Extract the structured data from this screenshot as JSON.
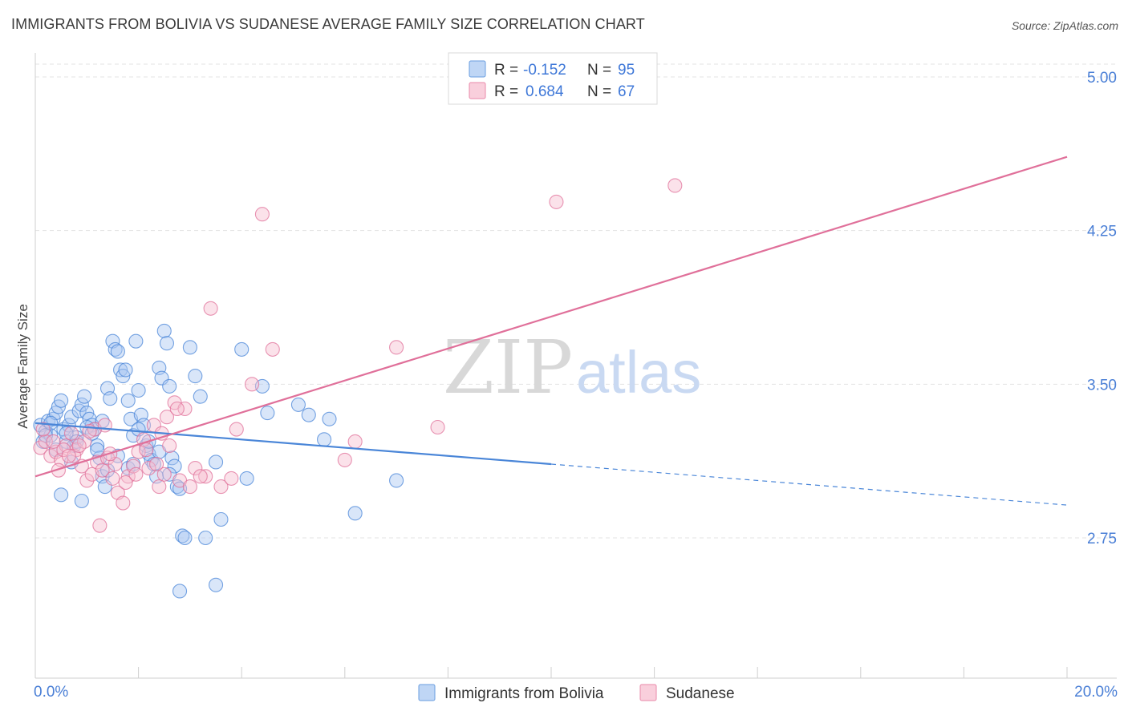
{
  "title": "IMMIGRANTS FROM BOLIVIA VS SUDANESE AVERAGE FAMILY SIZE CORRELATION CHART",
  "source": "Source: ZipAtlas.com",
  "watermark": {
    "zip": "ZIP",
    "atlas": "atlas"
  },
  "legend": {
    "r_label": "R =",
    "n_label": "N =",
    "rows": [
      {
        "r": "-0.152",
        "n": "95",
        "fill": "#aac8f2",
        "stroke": "#6a9ee0"
      },
      {
        "r": "0.684",
        "n": "67",
        "fill": "#f7bfd0",
        "stroke": "#e98aaa"
      }
    ]
  },
  "chart_data": {
    "type": "scatter",
    "title": "IMMIGRANTS FROM BOLIVIA VS SUDANESE AVERAGE FAMILY SIZE CORRELATION CHART",
    "xlabel": "",
    "ylabel": "Average Family Size",
    "xlim": [
      0,
      20
    ],
    "ylim": [
      2.2,
      5.1
    ],
    "x_tick_labels": [
      "0.0%",
      "20.0%"
    ],
    "y_ticks": [
      2.75,
      3.5,
      4.25,
      5.0
    ],
    "y_tick_labels": [
      "2.75",
      "3.50",
      "4.25",
      "5.00"
    ],
    "grid": true,
    "legend_position": "top-center",
    "series": [
      {
        "name": "Immigrants from Bolivia",
        "color": "#4a86d8",
        "fill": "#aac8f2",
        "trend": {
          "x0": 0,
          "y0": 3.31,
          "x1": 10,
          "y1": 3.11,
          "dashed_to_x": 20,
          "dashed_to_y": 2.91
        },
        "points": [
          [
            0.1,
            3.3
          ],
          [
            0.15,
            3.22
          ],
          [
            0.2,
            3.27
          ],
          [
            0.25,
            3.32
          ],
          [
            0.3,
            3.25
          ],
          [
            0.35,
            3.33
          ],
          [
            0.4,
            3.36
          ],
          [
            0.45,
            3.39
          ],
          [
            0.5,
            3.42
          ],
          [
            0.55,
            3.28
          ],
          [
            0.6,
            3.22
          ],
          [
            0.65,
            3.3
          ],
          [
            0.7,
            3.34
          ],
          [
            0.75,
            3.2
          ],
          [
            0.8,
            3.24
          ],
          [
            0.85,
            3.37
          ],
          [
            0.9,
            3.4
          ],
          [
            0.95,
            3.44
          ],
          [
            1.0,
            3.36
          ],
          [
            1.05,
            3.33
          ],
          [
            1.1,
            3.3
          ],
          [
            1.15,
            3.28
          ],
          [
            1.2,
            3.2
          ],
          [
            1.25,
            3.14
          ],
          [
            1.3,
            3.05
          ],
          [
            1.35,
            3.0
          ],
          [
            1.4,
            3.48
          ],
          [
            1.45,
            3.43
          ],
          [
            1.5,
            3.71
          ],
          [
            1.55,
            3.67
          ],
          [
            1.6,
            3.66
          ],
          [
            1.65,
            3.57
          ],
          [
            1.7,
            3.54
          ],
          [
            1.75,
            3.57
          ],
          [
            1.8,
            3.42
          ],
          [
            1.85,
            3.33
          ],
          [
            1.9,
            3.25
          ],
          [
            1.95,
            3.71
          ],
          [
            2.0,
            3.47
          ],
          [
            2.05,
            3.35
          ],
          [
            2.1,
            3.3
          ],
          [
            2.15,
            3.2
          ],
          [
            2.2,
            3.16
          ],
          [
            2.25,
            3.13
          ],
          [
            2.3,
            3.11
          ],
          [
            2.35,
            3.05
          ],
          [
            2.4,
            3.58
          ],
          [
            2.45,
            3.53
          ],
          [
            2.5,
            3.76
          ],
          [
            2.55,
            3.7
          ],
          [
            2.6,
            3.49
          ],
          [
            2.65,
            3.14
          ],
          [
            2.7,
            3.1
          ],
          [
            2.75,
            3.0
          ],
          [
            2.8,
            2.99
          ],
          [
            2.85,
            2.76
          ],
          [
            2.9,
            2.75
          ],
          [
            3.0,
            3.68
          ],
          [
            3.1,
            3.54
          ],
          [
            3.2,
            3.44
          ],
          [
            3.5,
            3.12
          ],
          [
            3.6,
            2.84
          ],
          [
            4.0,
            3.67
          ],
          [
            4.1,
            3.04
          ],
          [
            4.4,
            3.49
          ],
          [
            4.5,
            3.36
          ],
          [
            5.1,
            3.4
          ],
          [
            5.3,
            3.35
          ],
          [
            5.6,
            3.23
          ],
          [
            5.7,
            3.33
          ],
          [
            6.2,
            2.87
          ],
          [
            7.0,
            3.03
          ],
          [
            0.2,
            3.25
          ],
          [
            0.4,
            3.18
          ],
          [
            0.6,
            3.26
          ],
          [
            0.7,
            3.12
          ],
          [
            0.8,
            3.22
          ],
          [
            1.0,
            3.29
          ],
          [
            1.2,
            3.18
          ],
          [
            1.4,
            3.08
          ],
          [
            1.6,
            3.15
          ],
          [
            1.8,
            3.09
          ],
          [
            2.0,
            3.28
          ],
          [
            2.2,
            3.22
          ],
          [
            2.4,
            3.17
          ],
          [
            0.3,
            3.31
          ],
          [
            0.5,
            2.96
          ],
          [
            0.9,
            2.93
          ],
          [
            1.1,
            3.26
          ],
          [
            1.3,
            3.32
          ],
          [
            2.8,
            2.49
          ],
          [
            3.5,
            2.52
          ],
          [
            3.3,
            2.75
          ],
          [
            2.6,
            3.06
          ],
          [
            1.9,
            3.11
          ]
        ]
      },
      {
        "name": "Sudanese",
        "color": "#e0709a",
        "fill": "#f7bfd0",
        "trend": {
          "x0": 0,
          "y0": 3.05,
          "x1": 20,
          "y1": 4.61
        },
        "points": [
          [
            0.1,
            3.19
          ],
          [
            0.2,
            3.22
          ],
          [
            0.3,
            3.15
          ],
          [
            0.4,
            3.17
          ],
          [
            0.5,
            3.13
          ],
          [
            0.6,
            3.2
          ],
          [
            0.7,
            3.26
          ],
          [
            0.8,
            3.18
          ],
          [
            0.9,
            3.1
          ],
          [
            1.0,
            3.03
          ],
          [
            1.1,
            3.06
          ],
          [
            1.2,
            3.12
          ],
          [
            1.3,
            3.08
          ],
          [
            1.4,
            3.14
          ],
          [
            1.5,
            3.04
          ],
          [
            1.6,
            2.97
          ],
          [
            1.7,
            2.92
          ],
          [
            1.8,
            3.05
          ],
          [
            1.9,
            3.1
          ],
          [
            2.0,
            3.17
          ],
          [
            2.1,
            3.23
          ],
          [
            2.2,
            3.09
          ],
          [
            2.3,
            3.3
          ],
          [
            2.4,
            3.0
          ],
          [
            2.5,
            3.06
          ],
          [
            2.6,
            3.2
          ],
          [
            2.7,
            3.41
          ],
          [
            2.8,
            3.03
          ],
          [
            2.9,
            3.38
          ],
          [
            3.0,
            3.0
          ],
          [
            3.1,
            3.09
          ],
          [
            3.3,
            3.05
          ],
          [
            3.6,
            3.0
          ],
          [
            3.8,
            3.04
          ],
          [
            3.9,
            3.28
          ],
          [
            4.2,
            3.5
          ],
          [
            4.4,
            4.33
          ],
          [
            4.6,
            3.67
          ],
          [
            6.0,
            3.13
          ],
          [
            6.2,
            3.22
          ],
          [
            7.0,
            3.68
          ],
          [
            7.8,
            3.29
          ],
          [
            10.1,
            4.39
          ],
          [
            12.4,
            4.47
          ],
          [
            3.4,
            3.87
          ],
          [
            0.15,
            3.28
          ],
          [
            0.35,
            3.22
          ],
          [
            0.55,
            3.18
          ],
          [
            0.75,
            3.15
          ],
          [
            0.95,
            3.22
          ],
          [
            1.15,
            3.28
          ],
          [
            1.35,
            3.3
          ],
          [
            1.55,
            3.11
          ],
          [
            1.75,
            3.02
          ],
          [
            1.95,
            3.06
          ],
          [
            2.15,
            3.18
          ],
          [
            2.35,
            3.11
          ],
          [
            2.55,
            3.34
          ],
          [
            2.75,
            3.38
          ],
          [
            3.2,
            3.05
          ],
          [
            1.25,
            2.81
          ],
          [
            0.45,
            3.08
          ],
          [
            0.65,
            3.15
          ],
          [
            0.85,
            3.2
          ],
          [
            1.05,
            3.27
          ],
          [
            1.45,
            3.16
          ],
          [
            2.45,
            3.26
          ]
        ]
      }
    ]
  },
  "bottom_legend": [
    "Immigrants from Bolivia",
    "Sudanese"
  ]
}
